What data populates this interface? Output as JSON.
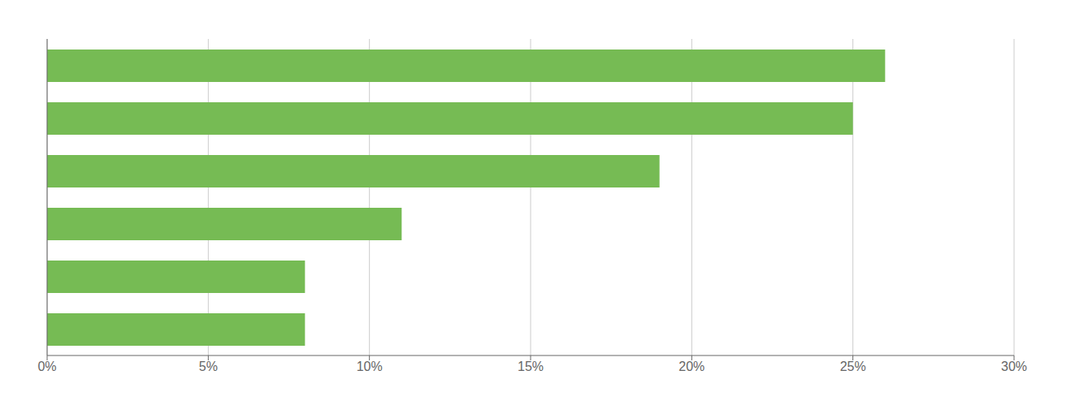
{
  "chart_data": {
    "type": "bar",
    "orientation": "horizontal",
    "categories": [
      null,
      null,
      null,
      null,
      null,
      null
    ],
    "values": [
      26,
      25,
      19,
      11,
      8,
      8
    ],
    "color": "#76BB54",
    "xlim": [
      0,
      30
    ],
    "xticks": [
      {
        "value": 0,
        "label": "0%"
      },
      {
        "value": 5,
        "label": "5%"
      },
      {
        "value": 10,
        "label": "10%"
      },
      {
        "value": 15,
        "label": "15%"
      },
      {
        "value": 20,
        "label": "20%"
      },
      {
        "value": 25,
        "label": "25%"
      },
      {
        "value": 30,
        "label": "30%"
      }
    ],
    "grid": true,
    "tick_labels": "x"
  }
}
